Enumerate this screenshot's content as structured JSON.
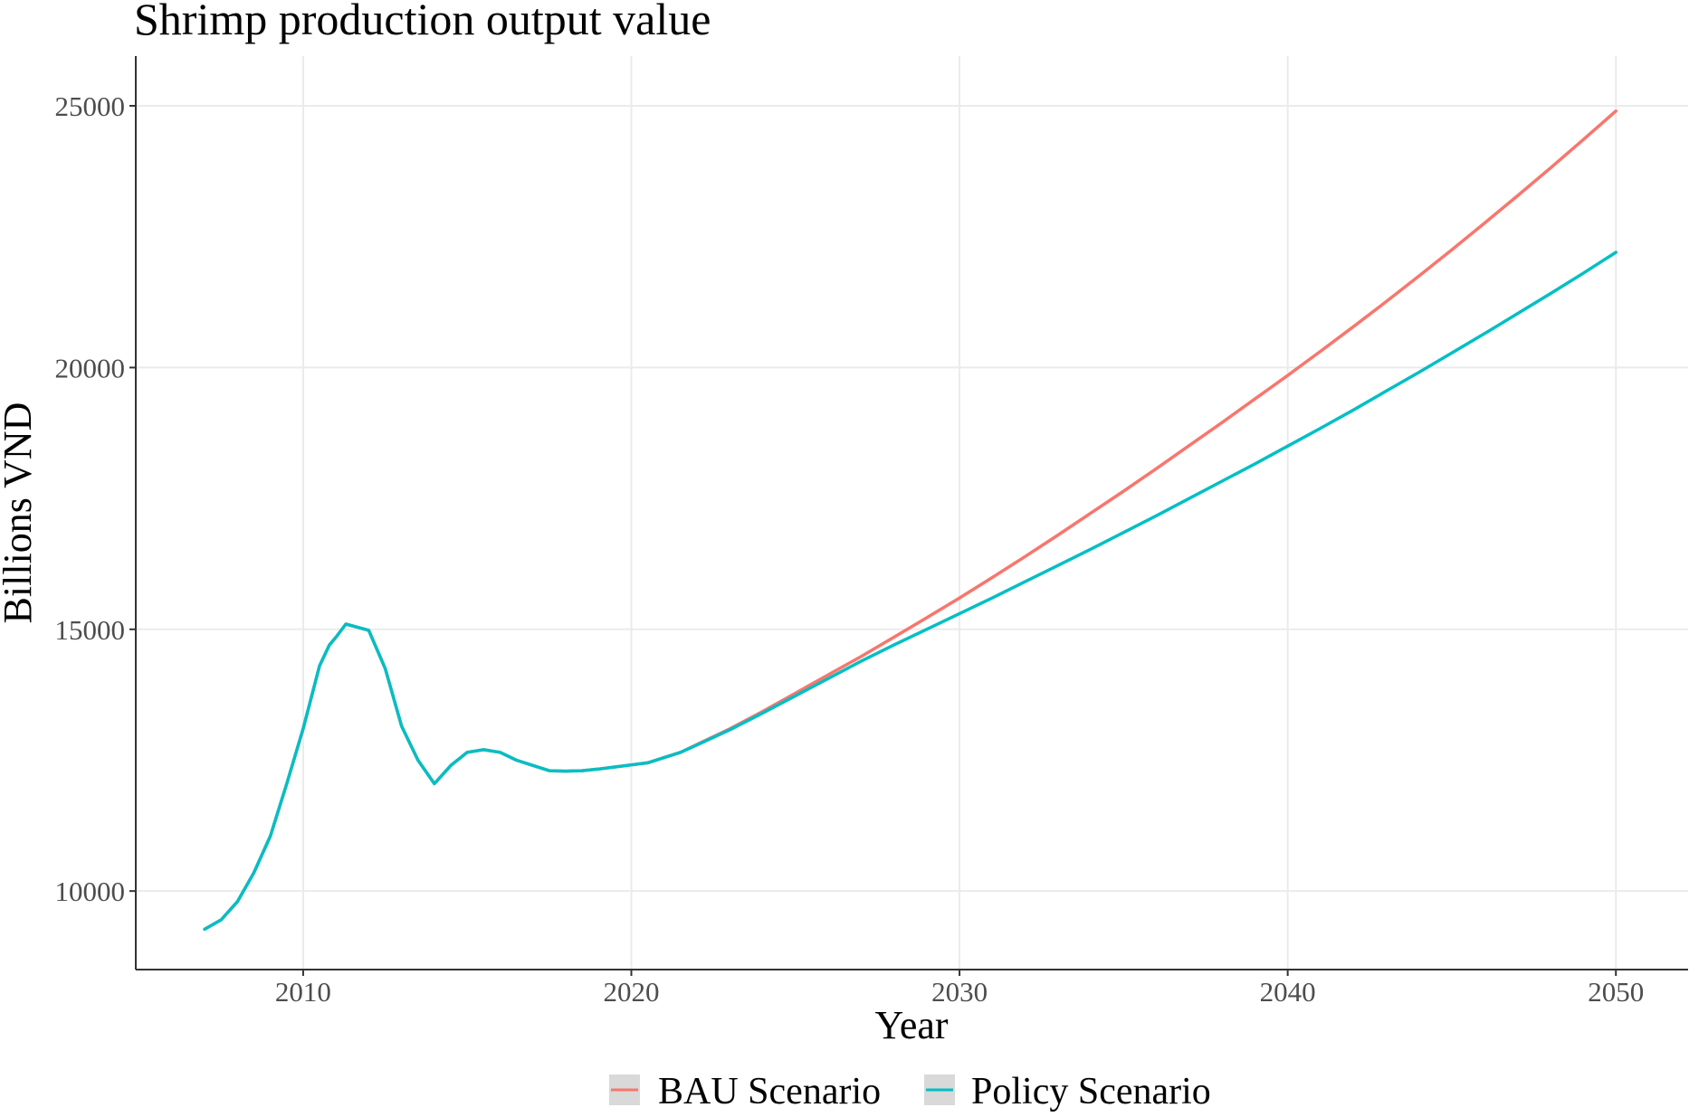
{
  "chart_data": {
    "type": "line",
    "title": "Shrimp production output value",
    "xlabel": "Year",
    "ylabel": "Billions VND",
    "xlim": [
      2004.9,
      2052.2
    ],
    "ylim": [
      8500,
      25950
    ],
    "x_ticks": [
      2010,
      2020,
      2030,
      2040,
      2050
    ],
    "y_ticks": [
      10000,
      15000,
      20000,
      25000
    ],
    "grid": true,
    "legend_position": "bottom",
    "series": [
      {
        "name": "BAU Scenario",
        "color": "#F8766D",
        "points": [
          [
            2007,
            9270
          ],
          [
            2007.5,
            9450
          ],
          [
            2008,
            9800
          ],
          [
            2008.5,
            10350
          ],
          [
            2009,
            11050
          ],
          [
            2009.5,
            12050
          ],
          [
            2010,
            13100
          ],
          [
            2010.5,
            14300
          ],
          [
            2010.8,
            14700
          ],
          [
            2011,
            14850
          ],
          [
            2011.3,
            15100
          ],
          [
            2011.6,
            15050
          ],
          [
            2012,
            14980
          ],
          [
            2012.5,
            14250
          ],
          [
            2013,
            13150
          ],
          [
            2013.5,
            12500
          ],
          [
            2014,
            12050
          ],
          [
            2014.5,
            12400
          ],
          [
            2015,
            12650
          ],
          [
            2015.5,
            12700
          ],
          [
            2016,
            12650
          ],
          [
            2016.5,
            12500
          ],
          [
            2017,
            12400
          ],
          [
            2017.5,
            12300
          ],
          [
            2018,
            12290
          ],
          [
            2018.5,
            12300
          ],
          [
            2019,
            12330
          ],
          [
            2019.5,
            12370
          ],
          [
            2020,
            12410
          ],
          [
            2020.5,
            12450
          ],
          [
            2021,
            12550
          ],
          [
            2021.5,
            12650
          ],
          [
            2022,
            12800
          ],
          [
            2023,
            13100
          ],
          [
            2024,
            13430
          ],
          [
            2025,
            13780
          ],
          [
            2026,
            14130
          ],
          [
            2027,
            14480
          ],
          [
            2028,
            14850
          ],
          [
            2029,
            15220
          ],
          [
            2030,
            15600
          ],
          [
            2031,
            15990
          ],
          [
            2032,
            16390
          ],
          [
            2033,
            16800
          ],
          [
            2034,
            17220
          ],
          [
            2035,
            17640
          ],
          [
            2036,
            18070
          ],
          [
            2037,
            18510
          ],
          [
            2038,
            18950
          ],
          [
            2039,
            19400
          ],
          [
            2040,
            19850
          ],
          [
            2041,
            20310
          ],
          [
            2042,
            20780
          ],
          [
            2043,
            21260
          ],
          [
            2044,
            21750
          ],
          [
            2045,
            22250
          ],
          [
            2046,
            22760
          ],
          [
            2047,
            23280
          ],
          [
            2048,
            23810
          ],
          [
            2049,
            24350
          ],
          [
            2050,
            24900
          ]
        ]
      },
      {
        "name": "Policy Scenario",
        "color": "#00BFC4",
        "points": [
          [
            2007,
            9270
          ],
          [
            2007.5,
            9450
          ],
          [
            2008,
            9800
          ],
          [
            2008.5,
            10350
          ],
          [
            2009,
            11050
          ],
          [
            2009.5,
            12050
          ],
          [
            2010,
            13100
          ],
          [
            2010.5,
            14300
          ],
          [
            2010.8,
            14700
          ],
          [
            2011,
            14850
          ],
          [
            2011.3,
            15100
          ],
          [
            2011.6,
            15050
          ],
          [
            2012,
            14980
          ],
          [
            2012.5,
            14250
          ],
          [
            2013,
            13150
          ],
          [
            2013.5,
            12500
          ],
          [
            2014,
            12050
          ],
          [
            2014.5,
            12400
          ],
          [
            2015,
            12650
          ],
          [
            2015.5,
            12700
          ],
          [
            2016,
            12650
          ],
          [
            2016.5,
            12500
          ],
          [
            2017,
            12400
          ],
          [
            2017.5,
            12300
          ],
          [
            2018,
            12290
          ],
          [
            2018.5,
            12300
          ],
          [
            2019,
            12330
          ],
          [
            2019.5,
            12370
          ],
          [
            2020,
            12410
          ],
          [
            2020.5,
            12450
          ],
          [
            2021,
            12550
          ],
          [
            2021.5,
            12650
          ],
          [
            2022,
            12790
          ],
          [
            2023,
            13080
          ],
          [
            2024,
            13400
          ],
          [
            2025,
            13730
          ],
          [
            2026,
            14060
          ],
          [
            2027,
            14390
          ],
          [
            2028,
            14700
          ],
          [
            2029,
            15000
          ],
          [
            2030,
            15300
          ],
          [
            2031,
            15600
          ],
          [
            2032,
            15910
          ],
          [
            2033,
            16220
          ],
          [
            2034,
            16530
          ],
          [
            2035,
            16850
          ],
          [
            2036,
            17170
          ],
          [
            2037,
            17500
          ],
          [
            2038,
            17830
          ],
          [
            2039,
            18160
          ],
          [
            2040,
            18500
          ],
          [
            2041,
            18840
          ],
          [
            2042,
            19190
          ],
          [
            2043,
            19550
          ],
          [
            2044,
            19910
          ],
          [
            2045,
            20280
          ],
          [
            2046,
            20650
          ],
          [
            2047,
            21030
          ],
          [
            2048,
            21410
          ],
          [
            2049,
            21800
          ],
          [
            2050,
            22200
          ]
        ]
      }
    ]
  }
}
